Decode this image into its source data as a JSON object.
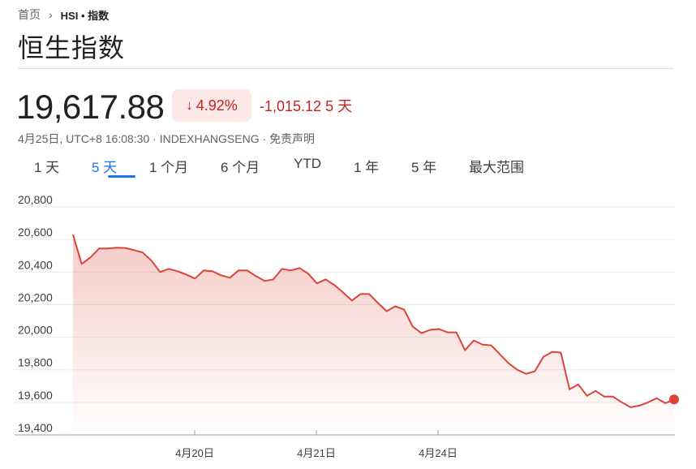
{
  "breadcrumb": {
    "home": "首页",
    "current": "HSI • 指数"
  },
  "title": "恒生指数",
  "quote": {
    "price": "19,617.88",
    "change_pct": "4.92%",
    "change_abs": "-1,015.12",
    "period": "5 天",
    "timestamp": "4月25日, UTC+8 16:08:30 · INDEXHANGSENG · ",
    "disclaimer": "免责声明"
  },
  "tabs": [
    "1 天",
    "5 天",
    "1 个月",
    "6 个月",
    "YTD",
    "1 年",
    "5 年",
    "最大范围"
  ],
  "active_tab": 1,
  "colors": {
    "line": "#db4437",
    "down": "#c5221f",
    "badge_bg": "#fce8e6",
    "accent": "#1a73e8"
  },
  "chart_data": {
    "type": "area",
    "ylim": [
      19400,
      20800
    ],
    "yticks": [
      20800,
      20600,
      20400,
      20200,
      20000,
      19800,
      19600,
      19400
    ],
    "ytick_labels": [
      "20,800",
      "20,600",
      "20,400",
      "20,200",
      "20,000",
      "19,800",
      "19,600",
      "19,400"
    ],
    "xtick_labels": [
      "4月20日",
      "4月21日",
      "4月24日"
    ],
    "grid": true,
    "series": [
      {
        "values": [
          20630,
          20450,
          20490,
          20545,
          20545,
          20550,
          20548,
          20535,
          20520,
          20470,
          20400,
          20420,
          20405,
          20385,
          20360,
          20410,
          20405,
          20380,
          20365,
          20410,
          20410,
          20375,
          20345,
          20355,
          20420,
          20410,
          20425,
          20390,
          20330,
          20355,
          20320,
          20275,
          20225,
          20265,
          20265,
          20210,
          20160,
          20190,
          20170,
          20065,
          20025,
          20045,
          20050,
          20030,
          20030,
          19920,
          19980,
          19955,
          19950,
          19895,
          19840,
          19800,
          19775,
          19790,
          19880,
          19910,
          19905,
          19680,
          19710,
          19640,
          19670,
          19635,
          19635,
          19600,
          19570,
          19580,
          19600,
          19625,
          19595,
          19618
        ]
      }
    ]
  }
}
